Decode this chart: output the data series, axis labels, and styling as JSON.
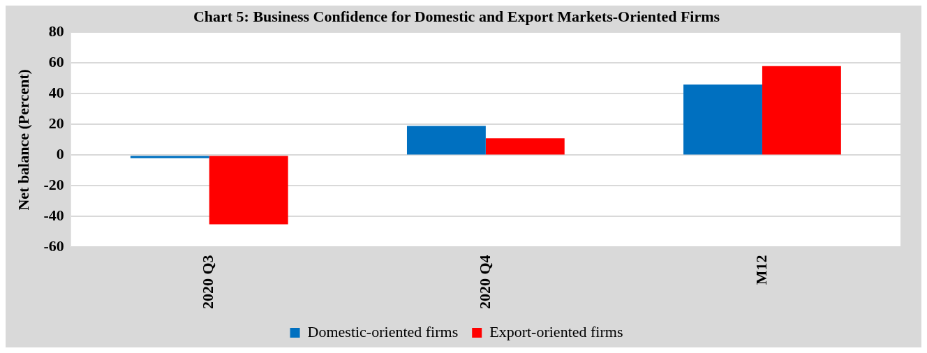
{
  "chart_data": {
    "type": "bar",
    "title": "Chart 5: Business Confidence for Domestic and Export Markets-Oriented Firms",
    "ylabel": "Net balance (Percent)",
    "categories": [
      "2020 Q3",
      "2020 Q4",
      "M12"
    ],
    "series": [
      {
        "name": "Domestic-oriented firms",
        "color": "#0070c0",
        "values": [
          -2,
          19,
          46
        ]
      },
      {
        "name": "Export-oriented firms",
        "color": "#ff0000",
        "values": [
          -45,
          11,
          58
        ]
      }
    ],
    "ylim": [
      -60,
      80
    ],
    "yticks": [
      -60,
      -40,
      -20,
      0,
      20,
      40,
      60,
      80
    ],
    "grid": "y",
    "legend": "bottom"
  }
}
